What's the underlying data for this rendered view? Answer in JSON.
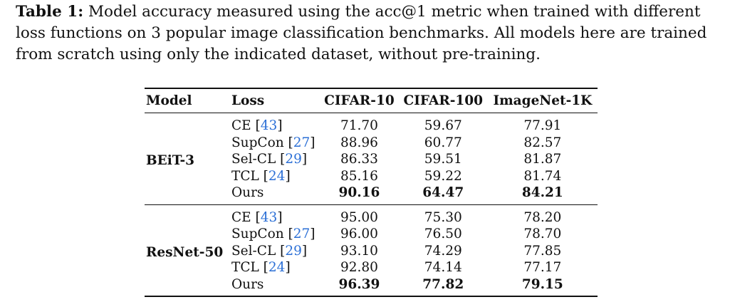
{
  "caption": {
    "label": "Table 1:",
    "line1": "Model accuracy measured using the acc@1 metric when trained with different",
    "line2": "loss functions on 3 popular image classification benchmarks. All models here are trained",
    "line3": "from scratch using only the indicated dataset, without pre-training."
  },
  "table": {
    "headers": [
      "Model",
      "Loss",
      "CIFAR-10",
      "CIFAR-100",
      "ImageNet-1K"
    ],
    "groups": [
      {
        "model": "BEiT-3",
        "rows": [
          {
            "loss": "CE",
            "cite": "43",
            "v1": "71.70",
            "v2": "59.67",
            "v3": "77.91"
          },
          {
            "loss": "SupCon",
            "cite": "27",
            "v1": "88.96",
            "v2": "60.77",
            "v3": "82.57"
          },
          {
            "loss": "Sel-CL",
            "cite": "29",
            "v1": "86.33",
            "v2": "59.51",
            "v3": "81.87"
          },
          {
            "loss": "TCL",
            "cite": "24",
            "v1": "85.16",
            "v2": "59.22",
            "v3": "81.74"
          },
          {
            "loss": "Ours",
            "v1": "90.16",
            "v2": "64.47",
            "v3": "84.21"
          }
        ]
      },
      {
        "model": "ResNet-50",
        "rows": [
          {
            "loss": "CE",
            "cite": "43",
            "v1": "95.00",
            "v2": "75.30",
            "v3": "78.20"
          },
          {
            "loss": "SupCon",
            "cite": "27",
            "v1": "96.00",
            "v2": "76.50",
            "v3": "78.70"
          },
          {
            "loss": "Sel-CL",
            "cite": "29",
            "v1": "93.10",
            "v2": "74.29",
            "v3": "77.85"
          },
          {
            "loss": "TCL",
            "cite": "24",
            "v1": "92.80",
            "v2": "74.14",
            "v3": "77.17"
          },
          {
            "loss": "Ours",
            "v1": "96.39",
            "v2": "77.82",
            "v3": "79.15"
          }
        ]
      }
    ]
  }
}
